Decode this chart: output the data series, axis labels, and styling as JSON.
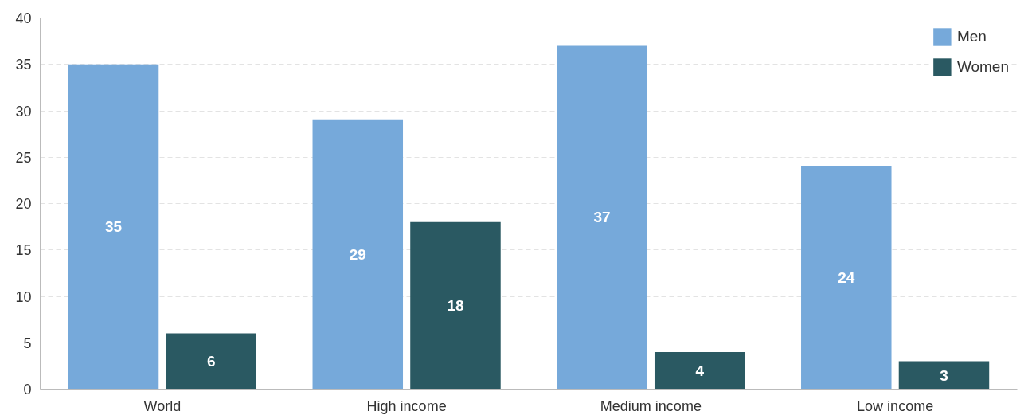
{
  "chart_data": {
    "type": "bar",
    "categories": [
      "World",
      "High income",
      "Medium income",
      "Low income"
    ],
    "series": [
      {
        "name": "Men",
        "color": "#76a9da",
        "values": [
          35,
          29,
          37,
          24
        ]
      },
      {
        "name": "Women",
        "color": "#2a5962",
        "values": [
          6,
          18,
          4,
          3
        ]
      }
    ],
    "ylim": [
      0,
      40
    ],
    "yticks": [
      0,
      5,
      10,
      15,
      20,
      25,
      30,
      35,
      40
    ],
    "grid": "y",
    "legend": "top right",
    "data_labels": true
  }
}
